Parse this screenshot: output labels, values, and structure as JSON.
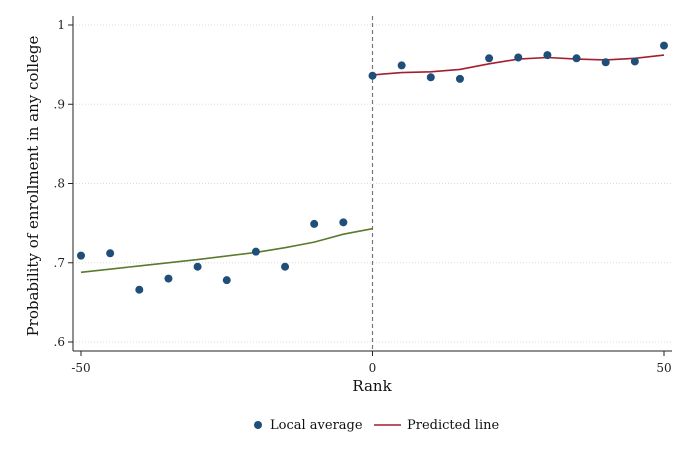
{
  "chart_data": {
    "type": "scatter",
    "title": "",
    "xlabel": "Rank",
    "ylabel": "Probability of enrollment in any college",
    "xlim": [
      -50,
      50
    ],
    "ylim": [
      0.6,
      1.0
    ],
    "x_ticks": [
      -50,
      0,
      50
    ],
    "x_tick_labels": [
      "-50",
      "0",
      "50"
    ],
    "y_ticks": [
      0.6,
      0.7,
      0.8,
      0.9,
      1.0
    ],
    "y_tick_labels": [
      ".6",
      ".7",
      ".8",
      ".9",
      "1"
    ],
    "grid": true,
    "cutoff": 0,
    "legend_position": "bottom",
    "legend": [
      "Local average",
      "Predicted line"
    ],
    "colors": {
      "points": "#1f4e79",
      "fit_left": "#5a7a2e",
      "fit_right": "#a31f2e",
      "cutoff_line": "#777777",
      "grid": "#dddddd"
    },
    "series": [
      {
        "name": "Local average",
        "kind": "scatter",
        "x": [
          -50,
          -45,
          -40,
          -35,
          -30,
          -25,
          -20,
          -15,
          -10,
          -5,
          0,
          5,
          10,
          15,
          20,
          25,
          30,
          35,
          40,
          45,
          50
        ],
        "y": [
          0.709,
          0.712,
          0.666,
          0.68,
          0.695,
          0.678,
          0.714,
          0.695,
          0.749,
          0.751,
          0.936,
          0.949,
          0.934,
          0.932,
          0.958,
          0.959,
          0.962,
          0.958,
          0.953,
          0.954,
          0.974
        ]
      },
      {
        "name": "Predicted line",
        "kind": "line",
        "side": "left",
        "x": [
          -50,
          -40,
          -30,
          -20,
          -15,
          -10,
          -5,
          0
        ],
        "y": [
          0.688,
          0.696,
          0.704,
          0.713,
          0.719,
          0.726,
          0.736,
          0.743
        ]
      },
      {
        "name": "Predicted line",
        "kind": "line",
        "side": "right",
        "x": [
          0,
          5,
          10,
          15,
          20,
          25,
          30,
          35,
          40,
          45,
          50
        ],
        "y": [
          0.937,
          0.94,
          0.941,
          0.944,
          0.951,
          0.957,
          0.959,
          0.957,
          0.956,
          0.958,
          0.962
        ]
      }
    ]
  }
}
